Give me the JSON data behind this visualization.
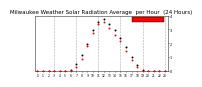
{
  "title": "Milwaukee Weather Solar Radiation Average  per Hour  (24 Hours)",
  "hours": [
    0,
    1,
    2,
    3,
    4,
    5,
    6,
    7,
    8,
    9,
    10,
    11,
    12,
    13,
    14,
    15,
    16,
    17,
    18,
    19,
    20,
    21,
    22,
    23
  ],
  "avg_values": [
    0,
    0,
    0,
    0,
    0,
    0,
    2,
    30,
    100,
    200,
    310,
    380,
    400,
    350,
    295,
    240,
    160,
    90,
    30,
    3,
    0,
    0,
    0,
    0
  ],
  "max_values": [
    0,
    0,
    0,
    0,
    3,
    0,
    8,
    55,
    130,
    220,
    330,
    400,
    420,
    385,
    330,
    270,
    195,
    115,
    50,
    10,
    0,
    0,
    0,
    0
  ],
  "dot_color_avg": "#ff0000",
  "dot_color_max": "#000000",
  "legend_color": "#ff0000",
  "background_color": "#ffffff",
  "grid_color": "#aaaaaa",
  "ylim": [
    0,
    450
  ],
  "xlim": [
    -0.5,
    23.5
  ],
  "ytick_labels": [
    "0",
    "1",
    "2",
    "3",
    "4"
  ],
  "ytick_positions": [
    0,
    112,
    224,
    337,
    450
  ],
  "xtick_positions": [
    0,
    1,
    2,
    3,
    4,
    5,
    6,
    7,
    8,
    9,
    10,
    11,
    12,
    13,
    14,
    15,
    16,
    17,
    18,
    19,
    20,
    21,
    22,
    23
  ],
  "vgrid_positions": [
    3,
    7,
    11,
    15,
    19,
    23
  ],
  "dot_size": 2,
  "title_fontsize": 4.0
}
